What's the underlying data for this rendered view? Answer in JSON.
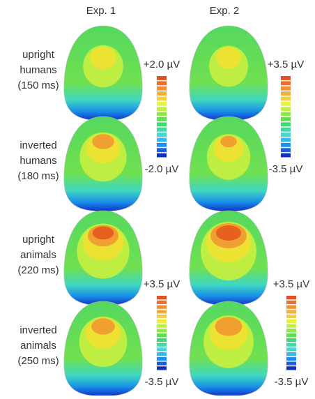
{
  "columns": [
    "Exp. 1",
    "Exp. 2"
  ],
  "rows": [
    {
      "label": [
        "upright",
        "humans",
        "(150 ms)"
      ]
    },
    {
      "label": [
        "inverted",
        "humans",
        "(180 ms)"
      ]
    },
    {
      "label": [
        "upright",
        "animals",
        "(220 ms)"
      ]
    },
    {
      "label": [
        "inverted",
        "animals",
        "(250 ms)"
      ]
    }
  ],
  "scales": [
    {
      "max": "+2.0 µV",
      "min": "-2.0 µV"
    },
    {
      "max": "+3.5 µV",
      "min": "-3.5 µV"
    },
    {
      "max": "+3.5 µV",
      "min": "-3.5 µV"
    },
    {
      "max": "+3.5 µV",
      "min": "-3.5 µV"
    }
  ]
}
